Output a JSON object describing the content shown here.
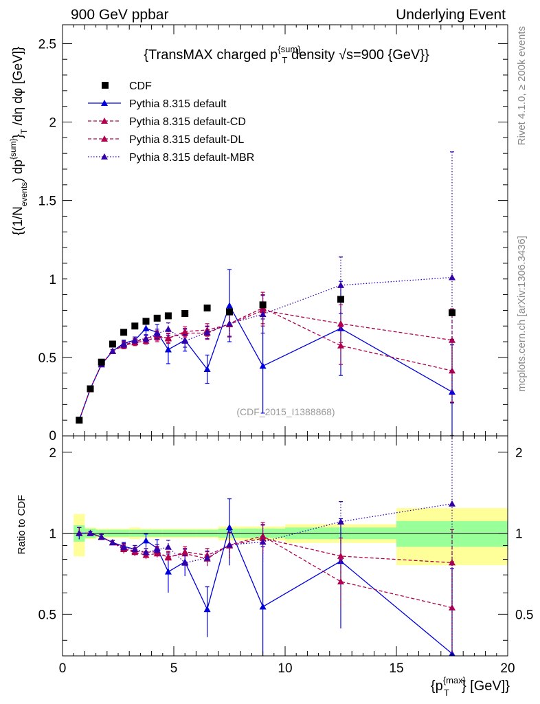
{
  "header": {
    "left": "900 GeV ppbar",
    "right": "Underlying Event"
  },
  "side": {
    "rivet": "Rivet 4.1.0, ≥ 200k events",
    "mcplots": "mcplots.cern.ch [arXiv:1306.3436]"
  },
  "colors": {
    "cdf": "#000000",
    "default": "#0000dd",
    "cd": "#b0004e",
    "dl": "#b0004e",
    "mbr": "#3300aa",
    "band_inner": "#99ff99",
    "band_outer": "#ffff99"
  },
  "chart_data": {
    "type": "scatter",
    "title": "{TransMAX charged p^{sum}_T density √s=900 {GeV}}",
    "title_parts": {
      "a": "{TransMAX charged p",
      "sup": "{sum}",
      "sub": "T",
      "b": " density √s=900 {GeV}}"
    },
    "watermark": "(CDF_2015_I1388868)",
    "ylabel": "{(1/N_{events}) dp^{sum}_T /dη dφ [GeV]}",
    "ylabel_parts": {
      "a": "{(1/N",
      "sub1": "events",
      "b": ") dp",
      "sup": "{sum}",
      "c": "}",
      "sub2": "T",
      "d": " /dη  dφ [GeV]}"
    },
    "xlabel": "{p_T^{max}} [GeV]}",
    "xlabel_parts": {
      "a": "{p",
      "sup": "{max}",
      "sub": "T",
      "b": "} [GeV]}"
    },
    "ratio_ylabel": "Ratio to CDF",
    "xlim": [
      0,
      20
    ],
    "ylim": [
      0,
      2.62
    ],
    "ratio_ylim": [
      0.35,
      2.3
    ],
    "x_ticks": [
      0,
      5,
      10,
      15,
      20
    ],
    "x_tick_labels": [
      "0",
      "5",
      "10",
      "15",
      "20"
    ],
    "y_ticks": [
      0,
      0.5,
      1,
      1.5,
      2,
      2.5
    ],
    "y_tick_labels": [
      "0",
      "0.5",
      "1",
      "1.5",
      "2",
      "2.5"
    ],
    "ratio_ticks": [
      0.5,
      1,
      2
    ],
    "ratio_tick_labels": [
      "0.5",
      "1",
      "2"
    ],
    "legend": [
      {
        "key": "cdf",
        "label": "CDF",
        "style": "marker"
      },
      {
        "key": "default",
        "label": "Pythia 8.315 default",
        "style": "solid"
      },
      {
        "key": "cd",
        "label": "Pythia 8.315 default-CD",
        "style": "dashed"
      },
      {
        "key": "dl",
        "label": "Pythia 8.315 default-DL",
        "style": "dashed"
      },
      {
        "key": "mbr",
        "label": "Pythia 8.315 default-MBR",
        "style": "dotted"
      }
    ],
    "data": {
      "name": "CDF",
      "x": [
        0.75,
        1.25,
        1.75,
        2.25,
        2.75,
        3.25,
        3.75,
        4.25,
        4.75,
        5.5,
        6.5,
        7.5,
        9.0,
        12.5,
        17.5
      ],
      "y": [
        0.1,
        0.3,
        0.47,
        0.585,
        0.66,
        0.7,
        0.73,
        0.75,
        0.765,
        0.78,
        0.815,
        0.79,
        0.835,
        0.87,
        0.785
      ],
      "bin_lo": [
        0.5,
        1.0,
        1.5,
        2.0,
        2.5,
        3.0,
        3.5,
        4.0,
        4.5,
        5.0,
        6.0,
        7.0,
        8.0,
        10.0,
        15.0
      ],
      "bin_hi": [
        1.0,
        1.5,
        2.0,
        2.5,
        3.0,
        3.5,
        4.0,
        4.5,
        5.0,
        6.0,
        7.0,
        8.0,
        10.0,
        15.0,
        20.0
      ],
      "stat_rel": [
        0.07,
        0.04,
        0.03,
        0.03,
        0.03,
        0.03,
        0.03,
        0.03,
        0.03,
        0.03,
        0.03,
        0.04,
        0.04,
        0.05,
        0.11
      ],
      "tot_rel": [
        0.18,
        0.05,
        0.04,
        0.04,
        0.04,
        0.05,
        0.04,
        0.04,
        0.04,
        0.04,
        0.04,
        0.06,
        0.06,
        0.08,
        0.24
      ]
    },
    "series": [
      {
        "key": "default",
        "name": "Pythia 8.315 default",
        "dash": "solid",
        "y": [
          0.1,
          0.3,
          0.455,
          0.54,
          0.59,
          0.61,
          0.685,
          0.66,
          0.55,
          0.61,
          0.425,
          0.83,
          0.445,
          0.685,
          0.28
        ],
        "err": [
          0.005,
          0.005,
          0.01,
          0.01,
          0.02,
          0.02,
          0.04,
          0.05,
          0.09,
          0.07,
          0.09,
          0.23,
          0.3,
          0.3,
          0.3
        ]
      },
      {
        "key": "cd",
        "name": "Pythia 8.315 default-CD",
        "dash": "dashed",
        "y": [
          0.1,
          0.3,
          0.455,
          0.54,
          0.575,
          0.595,
          0.605,
          0.63,
          0.625,
          0.655,
          0.655,
          0.715,
          0.815,
          0.575,
          0.415
        ],
        "err": [
          0.005,
          0.005,
          0.01,
          0.01,
          0.02,
          0.02,
          0.02,
          0.03,
          0.03,
          0.03,
          0.04,
          0.08,
          0.1,
          0.12,
          0.2
        ]
      },
      {
        "key": "dl",
        "name": "Pythia 8.315 default-DL",
        "dash": "dashed",
        "y": [
          0.1,
          0.3,
          0.455,
          0.54,
          0.58,
          0.6,
          0.62,
          0.64,
          0.62,
          0.665,
          0.675,
          0.71,
          0.8,
          0.715,
          0.61
        ],
        "err": [
          0.005,
          0.005,
          0.01,
          0.01,
          0.02,
          0.02,
          0.02,
          0.03,
          0.03,
          0.03,
          0.04,
          0.08,
          0.1,
          0.12,
          0.2
        ]
      },
      {
        "key": "mbr",
        "name": "Pythia 8.315 default-MBR",
        "dash": "dotted",
        "y": [
          0.1,
          0.3,
          0.455,
          0.54,
          0.585,
          0.61,
          0.62,
          0.65,
          0.68,
          0.605,
          0.66,
          0.715,
          0.775,
          0.96,
          1.01
        ],
        "err": [
          0.005,
          0.005,
          0.01,
          0.01,
          0.02,
          0.02,
          0.02,
          0.03,
          0.04,
          0.04,
          0.04,
          0.08,
          0.12,
          0.18,
          0.8
        ]
      }
    ]
  }
}
